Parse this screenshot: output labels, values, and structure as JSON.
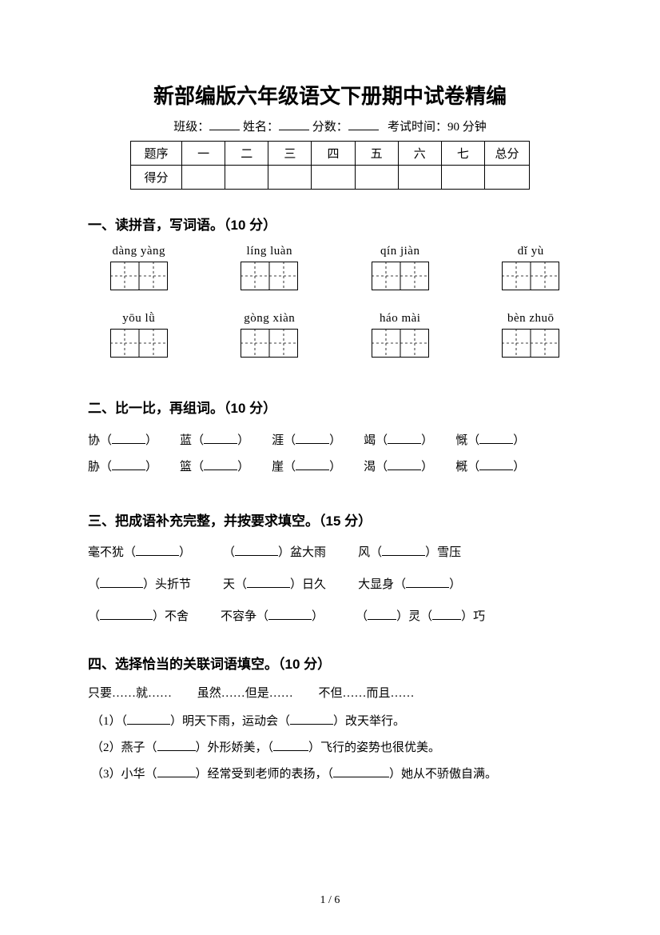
{
  "title": "新部编版六年级语文下册期中试卷精编",
  "meta": {
    "class_label": "班级：",
    "name_label": "姓名：",
    "score_label": "分数：",
    "time_label": "考试时间：90 分钟"
  },
  "score_table": {
    "header": [
      "题序",
      "一",
      "二",
      "三",
      "四",
      "五",
      "六",
      "七",
      "总分"
    ],
    "score_row_label": "得分"
  },
  "section1": {
    "title": "一、读拼音，写词语。（10 分）",
    "row1": [
      "dàng yàng",
      "líng luàn",
      "qín jiàn",
      "dǐ yù"
    ],
    "row2": [
      "yōu  lǜ",
      "gòng xiàn",
      "háo mài",
      "bèn zhuō"
    ]
  },
  "section2": {
    "title": "二、比一比，再组词。（10 分）",
    "rows": [
      [
        "协",
        "蓝",
        "涯",
        "竭",
        "慨"
      ],
      [
        "胁",
        "篮",
        "崖",
        "渴",
        "概"
      ]
    ]
  },
  "section3": {
    "title": "三、把成语补充完整，并按要求填空。（15 分）",
    "items": [
      {
        "pre": "毫不犹（",
        "post": "）"
      },
      {
        "pre": "（",
        "post": "）盆大雨"
      },
      {
        "pre": "风（",
        "post": "）雪压"
      },
      {
        "pre": "（",
        "post": "）头折节"
      },
      {
        "pre": "天（",
        "post": "）日久"
      },
      {
        "pre": "大显身（",
        "post": "）"
      },
      {
        "pre": "（",
        "post": "）不舍"
      },
      {
        "pre": "不容争（",
        "post": "）"
      },
      {
        "special": true,
        "a": "（",
        "b": "）灵（",
        "c": "）巧"
      }
    ]
  },
  "section4": {
    "title": "四、选择恰当的关联词语填空。（10 分）",
    "words": [
      "只要……就……",
      "虽然……但是……",
      "不但……而且……"
    ],
    "sentences": [
      {
        "n": "（1）",
        "parts": [
          "（",
          "）明天下雨，运动会（",
          "）改天举行。"
        ]
      },
      {
        "n": "（2）",
        "parts": [
          "燕子（",
          "）外形娇美，（",
          "）飞行的姿势也很优美。"
        ]
      },
      {
        "n": "（3）",
        "parts": [
          "小华（",
          "）经常受到老师的表扬，（",
          "）她从不骄傲自满。"
        ]
      }
    ]
  },
  "footer": "1 / 6"
}
